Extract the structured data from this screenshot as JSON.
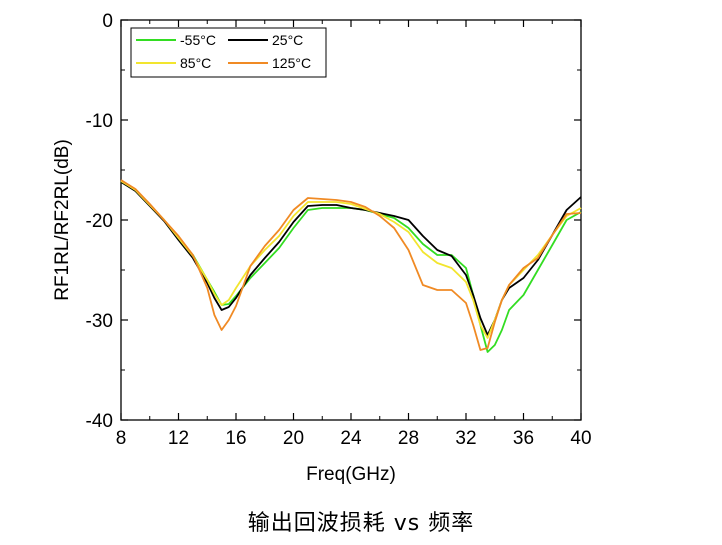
{
  "caption": "输出回波损耗 vs 频率",
  "chart_data": {
    "type": "line",
    "title": "",
    "xlabel": "Freq(GHz)",
    "ylabel": "RF1RL/RF2RL(dB)",
    "xlim": [
      8,
      40
    ],
    "ylim": [
      -40,
      0
    ],
    "x_ticks": [
      8,
      12,
      16,
      20,
      24,
      28,
      32,
      36,
      40
    ],
    "y_ticks": [
      0,
      -10,
      -20,
      -30,
      -40
    ],
    "x_tick_labels": [
      "8",
      "12",
      "16",
      "20",
      "24",
      "28",
      "32",
      "36",
      "40"
    ],
    "y_tick_labels": [
      "0",
      "-10",
      "-20",
      "-30",
      "-40"
    ],
    "grid": false,
    "legend_position": "top-left",
    "series": [
      {
        "name": "-55°C",
        "color": "#33dd22",
        "points": [
          [
            8,
            -16.2
          ],
          [
            9,
            -17.0
          ],
          [
            10,
            -18.5
          ],
          [
            11,
            -20.0
          ],
          [
            12,
            -21.8
          ],
          [
            13,
            -23.5
          ],
          [
            14,
            -26.0
          ],
          [
            14.5,
            -27.2
          ],
          [
            15,
            -28.5
          ],
          [
            15.5,
            -28.4
          ],
          [
            16,
            -27.6
          ],
          [
            17,
            -25.8
          ],
          [
            18,
            -24.3
          ],
          [
            19,
            -22.8
          ],
          [
            20,
            -20.8
          ],
          [
            21,
            -19.0
          ],
          [
            22,
            -18.8
          ],
          [
            23,
            -18.8
          ],
          [
            24,
            -18.8
          ],
          [
            25,
            -19.0
          ],
          [
            26,
            -19.4
          ],
          [
            27,
            -19.8
          ],
          [
            28,
            -20.8
          ],
          [
            29,
            -22.4
          ],
          [
            30,
            -23.5
          ],
          [
            31,
            -23.5
          ],
          [
            32,
            -24.8
          ],
          [
            32.5,
            -27.5
          ],
          [
            33,
            -30.5
          ],
          [
            33.5,
            -33.2
          ],
          [
            34,
            -32.5
          ],
          [
            34.5,
            -31.0
          ],
          [
            35,
            -29.0
          ],
          [
            36,
            -27.5
          ],
          [
            37,
            -25.0
          ],
          [
            38,
            -22.5
          ],
          [
            39,
            -20.0
          ],
          [
            40,
            -19.2
          ]
        ]
      },
      {
        "name": "25°C",
        "color": "#000000",
        "points": [
          [
            8,
            -16.2
          ],
          [
            9,
            -17.1
          ],
          [
            10,
            -18.6
          ],
          [
            11,
            -20.1
          ],
          [
            12,
            -22.0
          ],
          [
            13,
            -23.8
          ],
          [
            14,
            -26.3
          ],
          [
            14.5,
            -27.8
          ],
          [
            15,
            -29.0
          ],
          [
            15.5,
            -28.7
          ],
          [
            16,
            -27.8
          ],
          [
            17,
            -25.5
          ],
          [
            18,
            -23.8
          ],
          [
            19,
            -22.2
          ],
          [
            20,
            -20.2
          ],
          [
            21,
            -18.6
          ],
          [
            22,
            -18.5
          ],
          [
            23,
            -18.5
          ],
          [
            24,
            -18.8
          ],
          [
            25,
            -19.0
          ],
          [
            26,
            -19.3
          ],
          [
            27,
            -19.6
          ],
          [
            28,
            -20.0
          ],
          [
            29,
            -21.6
          ],
          [
            30,
            -23.0
          ],
          [
            31,
            -23.6
          ],
          [
            32,
            -25.5
          ],
          [
            32.5,
            -27.5
          ],
          [
            33,
            -29.8
          ],
          [
            33.5,
            -31.5
          ],
          [
            34,
            -30.0
          ],
          [
            34.5,
            -28.0
          ],
          [
            35,
            -26.8
          ],
          [
            36,
            -25.8
          ],
          [
            37,
            -24.0
          ],
          [
            38,
            -21.5
          ],
          [
            39,
            -19.0
          ],
          [
            40,
            -17.7
          ]
        ]
      },
      {
        "name": "85°C",
        "color": "#f2e52e",
        "points": [
          [
            8,
            -16.1
          ],
          [
            9,
            -17.0
          ],
          [
            10,
            -18.5
          ],
          [
            11,
            -20.0
          ],
          [
            12,
            -21.8
          ],
          [
            13,
            -23.6
          ],
          [
            14,
            -26.0
          ],
          [
            14.5,
            -27.4
          ],
          [
            15,
            -28.5
          ],
          [
            15.5,
            -28.0
          ],
          [
            16,
            -26.8
          ],
          [
            17,
            -24.6
          ],
          [
            18,
            -23.0
          ],
          [
            19,
            -21.6
          ],
          [
            20,
            -19.6
          ],
          [
            21,
            -18.2
          ],
          [
            22,
            -18.2
          ],
          [
            23,
            -18.2
          ],
          [
            24,
            -18.4
          ],
          [
            25,
            -18.9
          ],
          [
            26,
            -19.4
          ],
          [
            27,
            -20.2
          ],
          [
            28,
            -21.2
          ],
          [
            29,
            -23.2
          ],
          [
            30,
            -24.3
          ],
          [
            31,
            -24.8
          ],
          [
            32,
            -26.2
          ],
          [
            32.5,
            -28.0
          ],
          [
            33,
            -30.5
          ],
          [
            33.5,
            -31.8
          ],
          [
            34,
            -30.0
          ],
          [
            34.5,
            -28.0
          ],
          [
            35,
            -26.5
          ],
          [
            36,
            -25.0
          ],
          [
            37,
            -23.5
          ],
          [
            38,
            -21.5
          ],
          [
            39,
            -19.6
          ],
          [
            40,
            -18.8
          ]
        ]
      },
      {
        "name": "125°C",
        "color": "#f08a24",
        "points": [
          [
            8,
            -16.0
          ],
          [
            9,
            -16.9
          ],
          [
            10,
            -18.4
          ],
          [
            11,
            -20.0
          ],
          [
            12,
            -21.6
          ],
          [
            13,
            -23.5
          ],
          [
            14,
            -26.8
          ],
          [
            14.5,
            -29.5
          ],
          [
            15,
            -31.0
          ],
          [
            15.5,
            -30.0
          ],
          [
            16,
            -28.6
          ],
          [
            17,
            -24.6
          ],
          [
            18,
            -22.6
          ],
          [
            19,
            -21.0
          ],
          [
            20,
            -19.0
          ],
          [
            21,
            -17.8
          ],
          [
            22,
            -17.9
          ],
          [
            23,
            -18.0
          ],
          [
            24,
            -18.2
          ],
          [
            25,
            -18.7
          ],
          [
            26,
            -19.6
          ],
          [
            27,
            -20.8
          ],
          [
            28,
            -23.0
          ],
          [
            29,
            -26.5
          ],
          [
            30,
            -27.0
          ],
          [
            31,
            -27.0
          ],
          [
            32,
            -28.3
          ],
          [
            32.5,
            -30.5
          ],
          [
            33,
            -33.0
          ],
          [
            33.5,
            -32.8
          ],
          [
            34,
            -30.2
          ],
          [
            34.5,
            -28.0
          ],
          [
            35,
            -26.5
          ],
          [
            36,
            -24.8
          ],
          [
            37,
            -23.8
          ],
          [
            38,
            -21.5
          ],
          [
            39,
            -19.4
          ],
          [
            40,
            -19.3
          ]
        ]
      }
    ]
  }
}
